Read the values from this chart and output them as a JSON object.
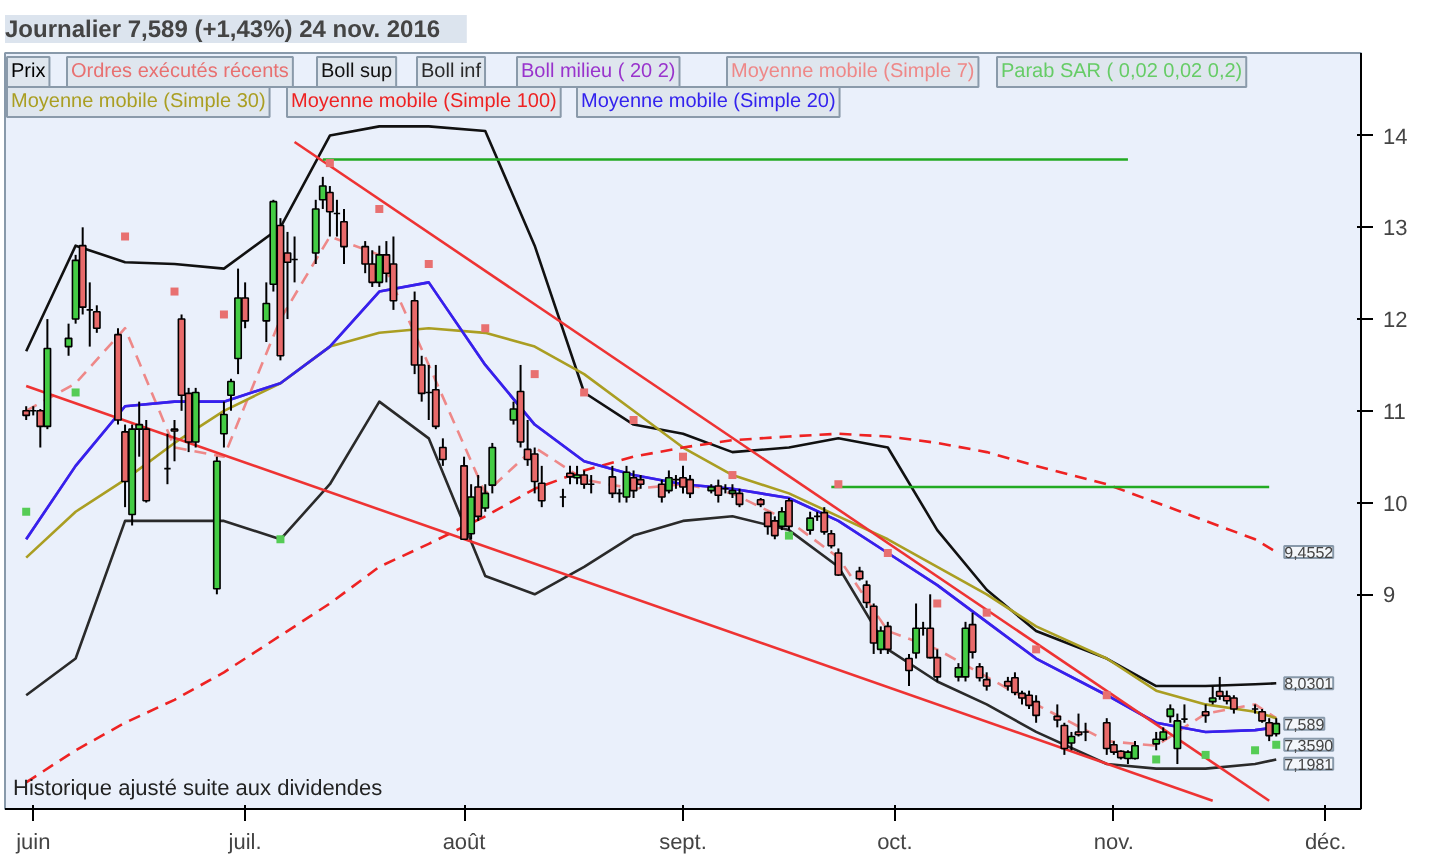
{
  "chart_data": {
    "type": "candlestick",
    "title": "Journalier   7,589 (+1,43%)   24 nov. 2016",
    "xlim": [
      "2016-05-28",
      "2016-12-06"
    ],
    "xticks": [
      {
        "value": "2016-06-01",
        "label": "juin"
      },
      {
        "value": "2016-07-01",
        "label": "juil."
      },
      {
        "value": "2016-08-01",
        "label": "août"
      },
      {
        "value": "2016-09-01",
        "label": "sept."
      },
      {
        "value": "2016-10-01",
        "label": "oct."
      },
      {
        "value": "2016-11-01",
        "label": "nov."
      },
      {
        "value": "2016-12-01",
        "label": "déc."
      }
    ],
    "ylim": [
      6.66,
      14.9
    ],
    "yticks": [
      9,
      10,
      11,
      12,
      13,
      14
    ],
    "legend": "top left",
    "annotations": [
      "Ordres exécutés récents",
      "Historique ajusté suite aux dividendes",
      {
        "text": "9,4552",
        "x": "2016-11-24",
        "y": 9.46
      },
      {
        "text": "8,0301",
        "x": "2016-11-24",
        "y": 8.0301
      },
      {
        "text": "7,589",
        "x": "2016-11-24",
        "y": 7.589
      },
      {
        "text": "7,3590",
        "x": "2016-11-24",
        "y": 7.359
      },
      {
        "text": "7,1981",
        "x": "2016-11-24",
        "y": 7.1981
      }
    ],
    "series": [
      {
        "name": "Prix",
        "color": "#000000",
        "x": [
          "2016-05-31",
          "2016-06-01",
          "2016-06-02",
          "2016-06-03",
          "2016-06-06",
          "2016-06-07",
          "2016-06-08",
          "2016-06-09",
          "2016-06-10",
          "2016-06-13",
          "2016-06-14",
          "2016-06-15",
          "2016-06-16",
          "2016-06-17",
          "2016-06-20",
          "2016-06-21",
          "2016-06-22",
          "2016-06-23",
          "2016-06-24",
          "2016-06-27",
          "2016-06-28",
          "2016-06-29",
          "2016-06-30",
          "2016-07-01",
          "2016-07-04",
          "2016-07-05",
          "2016-07-06",
          "2016-07-07",
          "2016-07-08",
          "2016-07-11",
          "2016-07-12",
          "2016-07-13",
          "2016-07-14",
          "2016-07-15",
          "2016-07-18",
          "2016-07-19",
          "2016-07-20",
          "2016-07-21",
          "2016-07-22",
          "2016-07-25",
          "2016-07-26",
          "2016-07-27",
          "2016-07-28",
          "2016-07-29",
          "2016-08-01",
          "2016-08-02",
          "2016-08-03",
          "2016-08-04",
          "2016-08-05",
          "2016-08-08",
          "2016-08-09",
          "2016-08-10",
          "2016-08-11",
          "2016-08-12",
          "2016-08-15",
          "2016-08-16",
          "2016-08-17",
          "2016-08-18",
          "2016-08-19",
          "2016-08-22",
          "2016-08-23",
          "2016-08-24",
          "2016-08-25",
          "2016-08-26",
          "2016-08-29",
          "2016-08-30",
          "2016-08-31",
          "2016-09-01",
          "2016-09-02",
          "2016-09-05",
          "2016-09-06",
          "2016-09-07",
          "2016-09-08",
          "2016-09-09",
          "2016-09-12",
          "2016-09-13",
          "2016-09-14",
          "2016-09-15",
          "2016-09-16",
          "2016-09-19",
          "2016-09-20",
          "2016-09-21",
          "2016-09-22",
          "2016-09-23",
          "2016-09-26",
          "2016-09-27",
          "2016-09-28",
          "2016-09-29",
          "2016-09-30",
          "2016-10-03",
          "2016-10-04",
          "2016-10-05",
          "2016-10-06",
          "2016-10-07",
          "2016-10-10",
          "2016-10-11",
          "2016-10-12",
          "2016-10-13",
          "2016-10-14",
          "2016-10-17",
          "2016-10-18",
          "2016-10-19",
          "2016-10-20",
          "2016-10-21",
          "2016-10-24",
          "2016-10-25",
          "2016-10-26",
          "2016-10-27",
          "2016-10-28",
          "2016-10-31",
          "2016-11-01",
          "2016-11-02",
          "2016-11-03",
          "2016-11-04",
          "2016-11-07",
          "2016-11-08",
          "2016-11-09",
          "2016-11-10",
          "2016-11-11",
          "2016-11-14",
          "2016-11-15",
          "2016-11-16",
          "2016-11-17",
          "2016-11-18",
          "2016-11-21",
          "2016-11-22",
          "2016-11-23",
          "2016-11-24"
        ],
        "ohlc": [
          [
            11.0,
            11.05,
            10.9,
            10.95
          ],
          [
            11.0,
            11.05,
            10.95,
            11.0
          ],
          [
            11.0,
            11.02,
            10.6,
            10.83
          ],
          [
            10.83,
            12.0,
            10.8,
            11.68
          ],
          [
            11.7,
            11.95,
            11.6,
            11.79
          ],
          [
            12.0,
            12.7,
            11.95,
            12.64
          ],
          [
            12.8,
            13.0,
            12.05,
            12.13
          ],
          [
            12.1,
            12.4,
            11.7,
            12.1
          ],
          [
            12.08,
            12.15,
            11.85,
            11.9
          ],
          [
            11.83,
            11.9,
            10.85,
            10.9
          ],
          [
            10.77,
            10.85,
            9.95,
            10.23
          ],
          [
            9.87,
            10.85,
            9.75,
            10.8
          ],
          [
            10.8,
            11.1,
            10.5,
            10.85
          ],
          [
            10.8,
            10.9,
            10.0,
            10.02
          ],
          [
            10.37,
            10.75,
            10.2,
            10.37
          ],
          [
            10.8,
            10.9,
            10.45,
            10.78
          ],
          [
            12.0,
            12.05,
            11.0,
            11.17
          ],
          [
            11.19,
            11.25,
            10.55,
            10.66
          ],
          [
            10.66,
            11.25,
            10.6,
            11.2
          ],
          [
            9.06,
            10.5,
            9.0,
            10.45
          ],
          [
            10.75,
            11.1,
            10.6,
            10.96
          ],
          [
            11.17,
            11.35,
            11.0,
            11.32
          ],
          [
            11.57,
            12.55,
            11.4,
            12.23
          ],
          [
            12.23,
            12.4,
            11.9,
            11.98
          ],
          [
            11.98,
            12.4,
            11.75,
            12.17
          ],
          [
            12.38,
            13.3,
            12.3,
            13.28
          ],
          [
            13.02,
            13.1,
            11.55,
            11.6
          ],
          [
            12.72,
            12.95,
            12.0,
            12.62
          ],
          [
            12.65,
            12.9,
            12.4,
            12.65
          ],
          [
            12.72,
            13.3,
            12.6,
            13.2
          ],
          [
            13.3,
            13.55,
            13.2,
            13.45
          ],
          [
            13.38,
            13.45,
            12.9,
            13.17
          ],
          [
            13.15,
            13.3,
            12.9,
            13.15
          ],
          [
            13.06,
            13.2,
            12.6,
            12.79
          ],
          [
            12.79,
            12.85,
            12.5,
            12.6
          ],
          [
            12.6,
            12.75,
            12.35,
            12.4
          ],
          [
            12.4,
            12.8,
            12.35,
            12.7
          ],
          [
            12.7,
            12.85,
            12.4,
            12.5
          ],
          [
            12.6,
            12.9,
            12.1,
            12.2
          ],
          [
            12.2,
            12.3,
            11.4,
            11.5
          ],
          [
            11.5,
            11.6,
            11.1,
            11.19
          ],
          [
            11.2,
            11.5,
            10.9,
            11.2
          ],
          [
            11.23,
            11.5,
            10.8,
            10.83
          ],
          [
            10.6,
            10.7,
            10.4,
            10.47
          ],
          [
            10.4,
            10.5,
            9.6,
            9.6
          ],
          [
            9.66,
            10.2,
            9.6,
            10.06
          ],
          [
            10.17,
            10.3,
            9.8,
            9.85
          ],
          [
            9.94,
            10.2,
            9.9,
            10.1
          ],
          [
            10.19,
            10.65,
            10.1,
            10.6
          ],
          [
            10.9,
            11.1,
            10.85,
            11.02
          ],
          [
            11.21,
            11.5,
            10.6,
            10.66
          ],
          [
            10.58,
            10.9,
            10.4,
            10.47
          ],
          [
            10.53,
            10.6,
            10.1,
            10.23
          ],
          [
            10.21,
            10.4,
            9.95,
            10.02
          ],
          [
            10.06,
            10.15,
            9.95,
            10.06
          ],
          [
            10.32,
            10.4,
            10.2,
            10.28
          ],
          [
            10.27,
            10.4,
            10.2,
            10.3
          ],
          [
            10.3,
            10.35,
            10.15,
            10.2
          ],
          [
            10.2,
            10.3,
            10.1,
            10.2
          ],
          [
            10.28,
            10.4,
            10.05,
            10.1
          ],
          [
            10.1,
            10.15,
            10.0,
            10.1
          ],
          [
            10.06,
            10.4,
            10.0,
            10.33
          ],
          [
            10.27,
            10.35,
            10.05,
            10.13
          ],
          [
            10.25,
            10.3,
            10.15,
            10.2
          ],
          [
            10.2,
            10.25,
            10.0,
            10.06
          ],
          [
            10.13,
            10.35,
            10.1,
            10.27
          ],
          [
            10.25,
            10.3,
            10.15,
            10.25
          ],
          [
            10.27,
            10.4,
            10.1,
            10.17
          ],
          [
            10.25,
            10.3,
            10.05,
            10.1
          ],
          [
            10.13,
            10.2,
            10.1,
            10.17
          ],
          [
            10.18,
            10.25,
            10.0,
            10.08
          ],
          [
            10.15,
            10.2,
            10.1,
            10.15
          ],
          [
            10.1,
            10.2,
            10.05,
            10.13
          ],
          [
            10.1,
            10.15,
            9.95,
            9.98
          ],
          [
            10.03,
            10.05,
            9.95,
            9.98
          ],
          [
            9.89,
            9.9,
            9.65,
            9.74
          ],
          [
            9.8,
            9.85,
            9.6,
            9.64
          ],
          [
            9.74,
            9.95,
            9.7,
            9.9
          ],
          [
            10.02,
            10.05,
            9.7,
            9.74
          ],
          [
            9.7,
            9.9,
            9.65,
            9.83
          ],
          [
            9.85,
            9.9,
            9.8,
            9.85
          ],
          [
            9.89,
            9.95,
            9.65,
            9.68
          ],
          [
            9.66,
            9.7,
            9.5,
            9.53
          ],
          [
            9.45,
            9.5,
            9.2,
            9.21
          ],
          [
            9.25,
            9.3,
            9.15,
            9.17
          ],
          [
            9.1,
            9.15,
            8.85,
            8.91
          ],
          [
            8.87,
            8.9,
            8.35,
            8.47
          ],
          [
            8.4,
            8.65,
            8.35,
            8.6
          ],
          [
            8.65,
            8.7,
            8.35,
            8.4
          ],
          [
            8.3,
            8.35,
            8.0,
            8.17
          ],
          [
            8.36,
            8.9,
            8.3,
            8.63
          ],
          [
            8.63,
            8.7,
            8.55,
            8.63
          ],
          [
            8.63,
            9.0,
            8.3,
            8.31
          ],
          [
            8.31,
            8.4,
            8.05,
            8.1
          ],
          [
            8.1,
            8.25,
            8.05,
            8.2
          ],
          [
            8.1,
            8.7,
            8.05,
            8.63
          ],
          [
            8.67,
            8.8,
            8.3,
            8.37
          ],
          [
            8.21,
            8.25,
            8.05,
            8.09
          ],
          [
            8.07,
            8.15,
            7.95,
            8.0
          ],
          [
            8.05,
            8.1,
            7.95,
            8.0
          ],
          [
            8.09,
            8.15,
            7.9,
            7.93
          ],
          [
            7.92,
            7.95,
            7.8,
            7.87
          ],
          [
            7.9,
            7.95,
            7.75,
            7.79
          ],
          [
            7.83,
            7.9,
            7.6,
            7.68
          ],
          [
            7.67,
            7.8,
            7.55,
            7.63
          ],
          [
            7.57,
            7.6,
            7.25,
            7.32
          ],
          [
            7.38,
            7.5,
            7.3,
            7.45
          ],
          [
            7.5,
            7.7,
            7.45,
            7.47
          ],
          [
            7.5,
            7.6,
            7.4,
            7.5
          ],
          [
            7.6,
            7.65,
            7.25,
            7.32
          ],
          [
            7.36,
            7.4,
            7.25,
            7.28
          ],
          [
            7.29,
            7.3,
            7.2,
            7.22
          ],
          [
            7.21,
            7.3,
            7.15,
            7.28
          ],
          [
            7.21,
            7.4,
            7.2,
            7.35
          ],
          [
            7.37,
            7.5,
            7.3,
            7.42
          ],
          [
            7.42,
            7.55,
            7.4,
            7.5
          ],
          [
            7.67,
            7.8,
            7.6,
            7.75
          ],
          [
            7.32,
            7.7,
            7.15,
            7.62
          ],
          [
            7.64,
            7.8,
            7.6,
            7.64
          ],
          [
            7.72,
            7.8,
            7.6,
            7.68
          ],
          [
            7.83,
            8.0,
            7.8,
            7.87
          ],
          [
            7.94,
            8.1,
            7.85,
            7.89
          ],
          [
            7.89,
            7.95,
            7.8,
            7.84
          ],
          [
            7.87,
            7.9,
            7.7,
            7.75
          ],
          [
            7.75,
            7.8,
            7.7,
            7.75
          ],
          [
            7.72,
            7.75,
            7.6,
            7.62
          ],
          [
            7.6,
            7.65,
            7.4,
            7.46
          ],
          [
            7.48,
            7.65,
            7.45,
            7.59
          ]
        ]
      },
      {
        "name": "Boll sup",
        "type": "line",
        "color": "#111111",
        "x": [
          "2016-05-31",
          "2016-06-07",
          "2016-06-14",
          "2016-06-21",
          "2016-06-28",
          "2016-07-06",
          "2016-07-13",
          "2016-07-20",
          "2016-07-27",
          "2016-08-04",
          "2016-08-11",
          "2016-08-18",
          "2016-08-25",
          "2016-09-01",
          "2016-09-08",
          "2016-09-16",
          "2016-09-23",
          "2016-09-30",
          "2016-10-07",
          "2016-10-14",
          "2016-10-21",
          "2016-10-31",
          "2016-11-07",
          "2016-11-14",
          "2016-11-21",
          "2016-11-24"
        ],
        "values": [
          11.65,
          12.8,
          12.62,
          12.6,
          12.55,
          13.0,
          14.0,
          14.1,
          14.1,
          14.05,
          12.8,
          11.2,
          10.85,
          10.75,
          10.55,
          10.6,
          10.7,
          10.6,
          9.7,
          9.05,
          8.6,
          8.3,
          8.0,
          8.0,
          8.02,
          8.03
        ]
      },
      {
        "name": "Boll inf",
        "type": "line",
        "color": "#2a2a2a",
        "x": [
          "2016-05-31",
          "2016-06-07",
          "2016-06-14",
          "2016-06-21",
          "2016-06-28",
          "2016-07-06",
          "2016-07-13",
          "2016-07-20",
          "2016-07-27",
          "2016-08-04",
          "2016-08-11",
          "2016-08-18",
          "2016-08-25",
          "2016-09-01",
          "2016-09-08",
          "2016-09-16",
          "2016-09-23",
          "2016-09-30",
          "2016-10-07",
          "2016-10-14",
          "2016-10-21",
          "2016-10-31",
          "2016-11-07",
          "2016-11-14",
          "2016-11-21",
          "2016-11-24"
        ],
        "values": [
          7.9,
          8.3,
          9.8,
          9.8,
          9.8,
          9.6,
          10.2,
          11.1,
          10.7,
          9.2,
          9.0,
          9.3,
          9.64,
          9.8,
          9.85,
          9.7,
          9.3,
          8.4,
          8.05,
          7.8,
          7.5,
          7.15,
          7.1,
          7.1,
          7.15,
          7.2
        ]
      },
      {
        "name": "Boll milieu ( 20 2)",
        "type": "line",
        "color": "#9933cc",
        "x": [
          "2016-05-31",
          "2016-06-07",
          "2016-06-14",
          "2016-06-21",
          "2016-06-28",
          "2016-07-06",
          "2016-07-13",
          "2016-07-20",
          "2016-07-27",
          "2016-08-04",
          "2016-08-11",
          "2016-08-18",
          "2016-08-25",
          "2016-09-01",
          "2016-09-08",
          "2016-09-16",
          "2016-09-23",
          "2016-09-30",
          "2016-10-07",
          "2016-10-14",
          "2016-10-21",
          "2016-10-31",
          "2016-11-07",
          "2016-11-14",
          "2016-11-21",
          "2016-11-24"
        ],
        "values": [
          9.6,
          10.4,
          11.05,
          11.1,
          11.1,
          11.3,
          11.7,
          12.3,
          12.4,
          11.5,
          10.85,
          10.45,
          10.3,
          10.2,
          10.15,
          10.05,
          9.8,
          9.45,
          9.1,
          8.7,
          8.3,
          7.9,
          7.6,
          7.5,
          7.52,
          7.55
        ]
      },
      {
        "name": "Moyenne mobile (Simple 7)",
        "type": "line",
        "line_style": "dashed",
        "color": "#ee8888",
        "x": [
          "2016-05-31",
          "2016-06-07",
          "2016-06-14",
          "2016-06-21",
          "2016-06-28",
          "2016-07-06",
          "2016-07-13",
          "2016-07-20",
          "2016-07-27",
          "2016-08-04",
          "2016-08-11",
          "2016-08-18",
          "2016-08-25",
          "2016-09-01",
          "2016-09-08",
          "2016-09-16",
          "2016-09-23",
          "2016-09-30",
          "2016-10-07",
          "2016-10-14",
          "2016-10-21",
          "2016-10-31",
          "2016-11-07",
          "2016-11-14",
          "2016-11-21",
          "2016-11-24"
        ],
        "values": [
          11.0,
          11.3,
          11.9,
          10.6,
          10.5,
          12.0,
          12.9,
          12.7,
          11.5,
          10.1,
          10.6,
          10.25,
          10.15,
          10.2,
          10.1,
          9.8,
          9.4,
          8.6,
          8.4,
          8.1,
          7.8,
          7.4,
          7.35,
          7.7,
          7.8,
          7.65
        ]
      },
      {
        "name": "Parab SAR ( 0,02 0,02 0,2)",
        "type": "scatter",
        "marker": "square",
        "color": "#66cc66",
        "x": [
          "2016-05-31",
          "2016-06-07",
          "2016-06-14",
          "2016-06-21",
          "2016-06-28",
          "2016-07-06",
          "2016-07-13",
          "2016-07-20",
          "2016-07-27",
          "2016-08-04",
          "2016-08-11",
          "2016-08-18",
          "2016-08-25",
          "2016-09-01",
          "2016-09-08",
          "2016-09-16",
          "2016-09-23",
          "2016-09-30",
          "2016-10-07",
          "2016-10-14",
          "2016-10-21",
          "2016-10-31",
          "2016-11-07",
          "2016-11-14",
          "2016-11-21",
          "2016-11-24"
        ],
        "values": [
          9.9,
          11.2,
          12.9,
          12.3,
          12.05,
          9.6,
          13.7,
          13.2,
          12.6,
          11.9,
          11.4,
          11.2,
          10.9,
          10.5,
          10.3,
          9.64,
          10.2,
          9.45,
          8.9,
          8.8,
          8.4,
          7.9,
          7.2,
          7.25,
          7.3,
          7.36
        ],
        "colors": [
          "#55cc55",
          "#55cc55",
          "#e87070",
          "#e87070",
          "#e87070",
          "#55cc55",
          "#e87070",
          "#e87070",
          "#e87070",
          "#e87070",
          "#e87070",
          "#e87070",
          "#e87070",
          "#e87070",
          "#e87070",
          "#55cc55",
          "#e87070",
          "#e87070",
          "#e87070",
          "#e87070",
          "#e87070",
          "#e87070",
          "#55cc55",
          "#55cc55",
          "#55cc55",
          "#55cc55"
        ]
      },
      {
        "name": "Moyenne mobile (Simple 30)",
        "type": "line",
        "color": "#aa9e22",
        "x": [
          "2016-05-31",
          "2016-06-07",
          "2016-06-14",
          "2016-06-21",
          "2016-06-28",
          "2016-07-06",
          "2016-07-13",
          "2016-07-20",
          "2016-07-27",
          "2016-08-04",
          "2016-08-11",
          "2016-08-18",
          "2016-08-25",
          "2016-09-01",
          "2016-09-08",
          "2016-09-16",
          "2016-09-23",
          "2016-09-30",
          "2016-10-07",
          "2016-10-14",
          "2016-10-21",
          "2016-10-31",
          "2016-11-07",
          "2016-11-14",
          "2016-11-21",
          "2016-11-24"
        ],
        "values": [
          9.4,
          9.9,
          10.25,
          10.65,
          11.0,
          11.3,
          11.7,
          11.85,
          11.9,
          11.85,
          11.7,
          11.4,
          11.0,
          10.6,
          10.3,
          10.1,
          9.85,
          9.6,
          9.3,
          9.0,
          8.65,
          8.3,
          7.95,
          7.8,
          7.72,
          7.65
        ]
      },
      {
        "name": "Moyenne mobile (Simple 100)",
        "type": "line",
        "line_style": "dashed",
        "color": "#ee2222",
        "x": [
          "2016-05-31",
          "2016-06-07",
          "2016-06-14",
          "2016-06-21",
          "2016-06-28",
          "2016-07-06",
          "2016-07-13",
          "2016-07-20",
          "2016-07-27",
          "2016-08-04",
          "2016-08-11",
          "2016-08-18",
          "2016-08-25",
          "2016-09-01",
          "2016-09-08",
          "2016-09-16",
          "2016-09-23",
          "2016-09-30",
          "2016-10-07",
          "2016-10-14",
          "2016-10-21",
          "2016-10-31",
          "2016-11-07",
          "2016-11-14",
          "2016-11-21",
          "2016-11-24"
        ],
        "values": [
          6.95,
          7.3,
          7.6,
          7.85,
          8.15,
          8.55,
          8.9,
          9.3,
          9.55,
          9.85,
          10.15,
          10.35,
          10.5,
          10.6,
          10.68,
          10.72,
          10.75,
          10.72,
          10.65,
          10.55,
          10.4,
          10.2,
          10.0,
          9.8,
          9.6,
          9.46
        ]
      },
      {
        "name": "Moyenne mobile (Simple 20)",
        "type": "line",
        "color": "#3322ee",
        "x": [
          "2016-05-31",
          "2016-06-07",
          "2016-06-14",
          "2016-06-21",
          "2016-06-28",
          "2016-07-06",
          "2016-07-13",
          "2016-07-20",
          "2016-07-27",
          "2016-08-04",
          "2016-08-11",
          "2016-08-18",
          "2016-08-25",
          "2016-09-01",
          "2016-09-08",
          "2016-09-16",
          "2016-09-23",
          "2016-09-30",
          "2016-10-07",
          "2016-10-14",
          "2016-10-21",
          "2016-10-31",
          "2016-11-07",
          "2016-11-14",
          "2016-11-21",
          "2016-11-24"
        ],
        "values": [
          9.6,
          10.4,
          11.05,
          11.1,
          11.1,
          11.3,
          11.7,
          12.3,
          12.4,
          11.5,
          10.85,
          10.45,
          10.3,
          10.2,
          10.15,
          10.05,
          9.8,
          9.45,
          9.1,
          8.7,
          8.3,
          7.9,
          7.6,
          7.5,
          7.52,
          7.55
        ]
      },
      {
        "type": "line",
        "color": "#ee3333",
        "x": [
          "2016-07-08",
          "2016-11-23"
        ],
        "values": [
          13.93,
          6.75
        ]
      },
      {
        "type": "line",
        "color": "#ee3333",
        "x": [
          "2016-05-31",
          "2016-11-15"
        ],
        "values": [
          11.27,
          6.75
        ]
      },
      {
        "type": "line",
        "color": "#22aa22",
        "x": [
          "2016-07-12",
          "2016-11-03"
        ],
        "values": [
          13.74,
          13.74
        ]
      },
      {
        "type": "line",
        "color": "#22aa22",
        "x": [
          "2016-09-22",
          "2016-11-23"
        ],
        "values": [
          10.17,
          10.17
        ]
      }
    ]
  }
}
